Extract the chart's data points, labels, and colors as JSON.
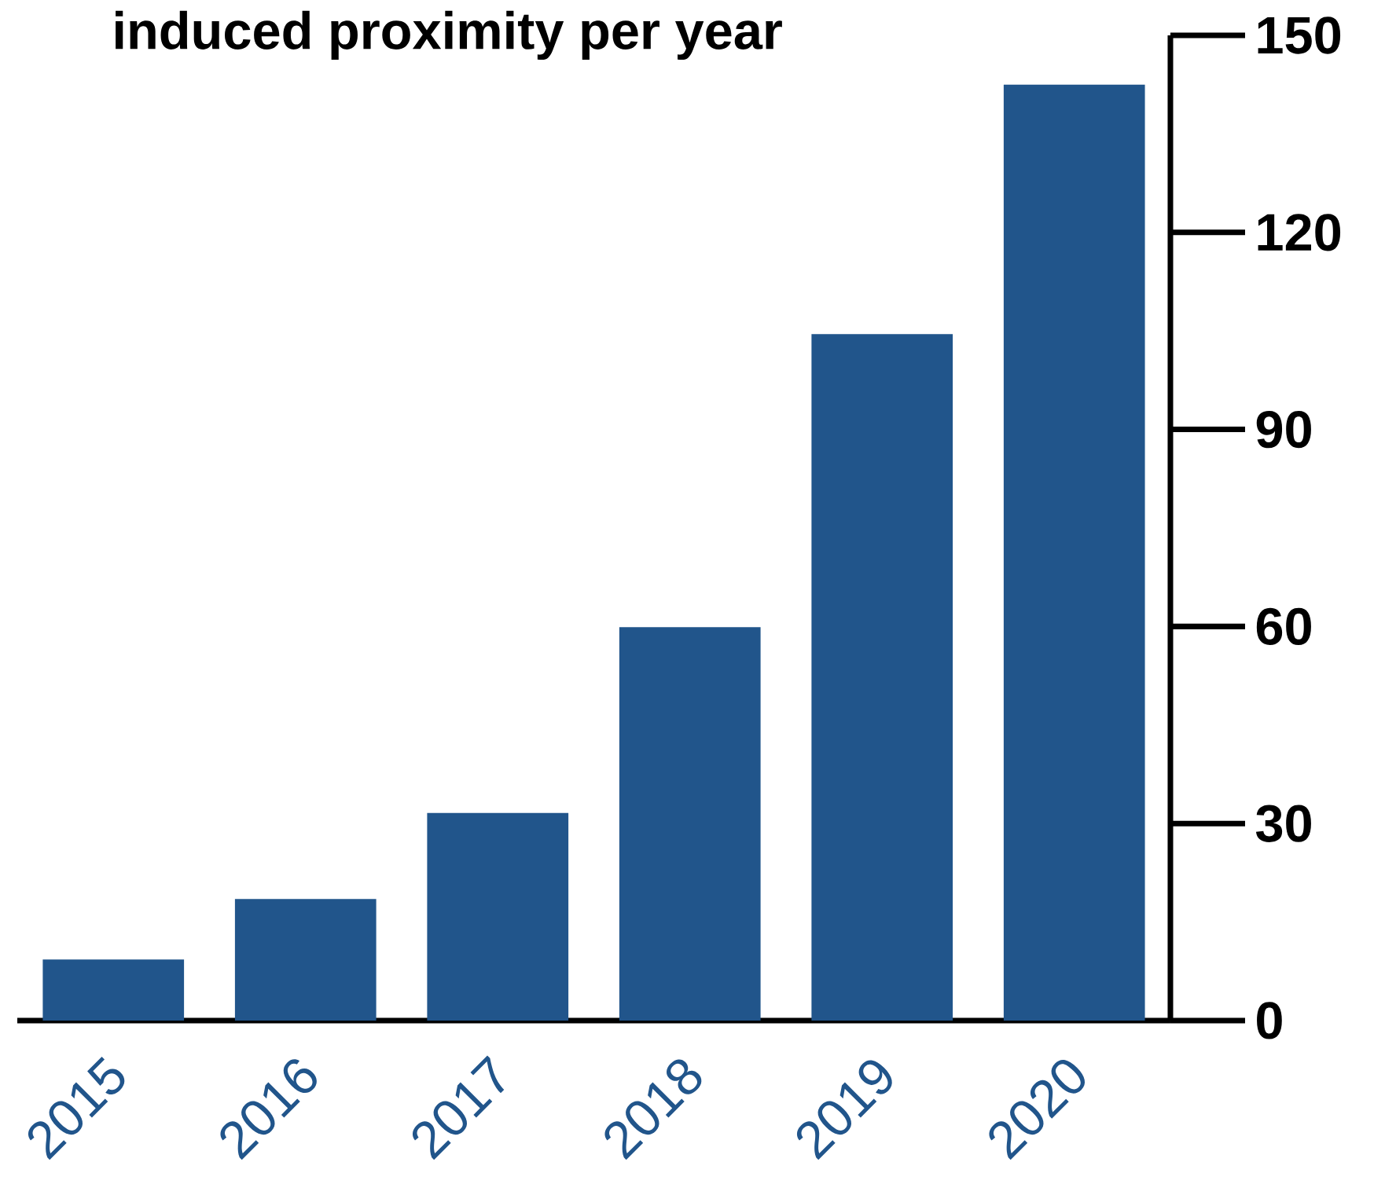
{
  "chart_data": {
    "type": "bar",
    "title": "induced proximity per year",
    "categories": [
      "2015",
      "2016",
      "2017",
      "2018",
      "2019",
      "2020"
    ],
    "values": [
      9.3,
      18.5,
      31.6,
      59.9,
      104.5,
      142.5
    ],
    "color": "#21558b",
    "ylim": [
      0,
      150
    ],
    "yticks": [
      0,
      30,
      60,
      90,
      120,
      150
    ]
  }
}
